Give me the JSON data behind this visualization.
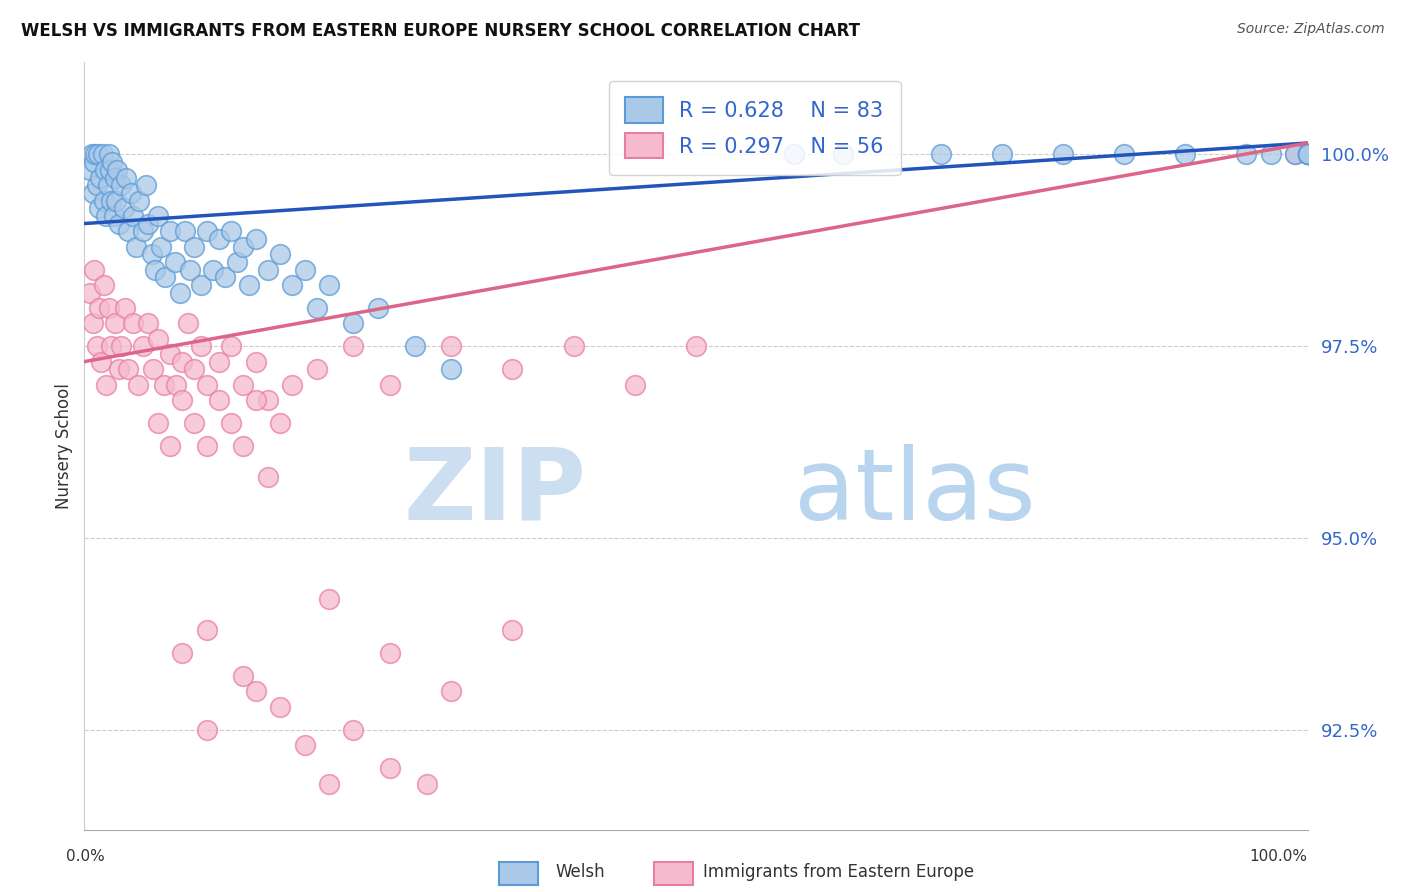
{
  "title": "WELSH VS IMMIGRANTS FROM EASTERN EUROPE NURSERY SCHOOL CORRELATION CHART",
  "source": "Source: ZipAtlas.com",
  "ylabel": "Nursery School",
  "yticks": [
    92.5,
    95.0,
    97.5,
    100.0
  ],
  "ytick_labels": [
    "92.5%",
    "95.0%",
    "97.5%",
    "100.0%"
  ],
  "xlim": [
    0,
    100
  ],
  "ylim": [
    91.2,
    101.2
  ],
  "welsh_color": "#aac9e8",
  "welsh_edge_color": "#5b9bd5",
  "pink_color": "#f5bace",
  "pink_edge_color": "#e87fa0",
  "blue_line_color": "#2255bb",
  "pink_line_color": "#dd6688",
  "legend_R_welsh": "R = 0.628",
  "legend_N_welsh": "N = 83",
  "legend_R_pink": "R = 0.297",
  "legend_N_pink": "N = 56",
  "watermark_zip_color": "#ccdff0",
  "watermark_atlas_color": "#b8d4ee",
  "grid_color": "#cccccc",
  "background_color": "#ffffff",
  "blue_line_x0": 0,
  "blue_line_y0": 99.1,
  "blue_line_x1": 100,
  "blue_line_y1": 100.15,
  "pink_line_x0": 0,
  "pink_line_y0": 97.3,
  "pink_line_x1": 100,
  "pink_line_y1": 100.15,
  "welsh_x_data": [
    0.5,
    0.6,
    0.7,
    0.8,
    0.9,
    1.0,
    1.1,
    1.2,
    1.3,
    1.5,
    1.6,
    1.7,
    1.8,
    1.9,
    2.0,
    2.1,
    2.2,
    2.3,
    2.4,
    2.5,
    2.6,
    2.7,
    2.8,
    3.0,
    3.2,
    3.4,
    3.6,
    3.8,
    4.0,
    4.2,
    4.5,
    4.8,
    5.0,
    5.2,
    5.5,
    5.8,
    6.0,
    6.3,
    6.6,
    7.0,
    7.4,
    7.8,
    8.2,
    8.6,
    9.0,
    9.5,
    10.0,
    10.5,
    11.0,
    11.5,
    12.0,
    12.5,
    13.0,
    13.5,
    14.0,
    15.0,
    16.0,
    17.0,
    18.0,
    19.0,
    20.0,
    22.0,
    24.0,
    27.0,
    30.0,
    58.0,
    62.0,
    70.0,
    75.0,
    80.0,
    85.0,
    90.0,
    95.0,
    97.0,
    99.0,
    100.0,
    100.0,
    100.0,
    100.0,
    100.0,
    100.0,
    100.0,
    100.0
  ],
  "welsh_y_data": [
    99.8,
    100.0,
    99.5,
    99.9,
    100.0,
    99.6,
    100.0,
    99.3,
    99.7,
    100.0,
    99.4,
    99.8,
    99.2,
    99.6,
    100.0,
    99.8,
    99.4,
    99.9,
    99.2,
    99.7,
    99.4,
    99.8,
    99.1,
    99.6,
    99.3,
    99.7,
    99.0,
    99.5,
    99.2,
    98.8,
    99.4,
    99.0,
    99.6,
    99.1,
    98.7,
    98.5,
    99.2,
    98.8,
    98.4,
    99.0,
    98.6,
    98.2,
    99.0,
    98.5,
    98.8,
    98.3,
    99.0,
    98.5,
    98.9,
    98.4,
    99.0,
    98.6,
    98.8,
    98.3,
    98.9,
    98.5,
    98.7,
    98.3,
    98.5,
    98.0,
    98.3,
    97.8,
    98.0,
    97.5,
    97.2,
    100.0,
    100.0,
    100.0,
    100.0,
    100.0,
    100.0,
    100.0,
    100.0,
    100.0,
    100.0,
    100.0,
    100.0,
    100.0,
    100.0,
    100.0,
    100.0,
    100.0,
    100.0
  ],
  "pink_x_data": [
    0.5,
    0.7,
    0.8,
    1.0,
    1.2,
    1.4,
    1.6,
    1.8,
    2.0,
    2.2,
    2.5,
    2.8,
    3.0,
    3.3,
    3.6,
    4.0,
    4.4,
    4.8,
    5.2,
    5.6,
    6.0,
    6.5,
    7.0,
    7.5,
    8.0,
    8.5,
    9.0,
    9.5,
    10.0,
    11.0,
    12.0,
    13.0,
    14.0,
    15.0,
    17.0,
    19.0,
    22.0,
    25.0,
    30.0,
    35.0,
    40.0,
    45.0,
    50.0,
    6.0,
    7.0,
    8.0,
    9.0,
    10.0,
    11.0,
    12.0,
    13.0,
    14.0,
    15.0,
    16.0,
    99.0,
    100.0
  ],
  "pink_y_data": [
    98.2,
    97.8,
    98.5,
    97.5,
    98.0,
    97.3,
    98.3,
    97.0,
    98.0,
    97.5,
    97.8,
    97.2,
    97.5,
    98.0,
    97.2,
    97.8,
    97.0,
    97.5,
    97.8,
    97.2,
    97.6,
    97.0,
    97.4,
    97.0,
    97.3,
    97.8,
    97.2,
    97.5,
    97.0,
    97.3,
    97.5,
    97.0,
    97.3,
    96.8,
    97.0,
    97.2,
    97.5,
    97.0,
    97.5,
    97.2,
    97.5,
    97.0,
    97.5,
    96.5,
    96.2,
    96.8,
    96.5,
    96.2,
    96.8,
    96.5,
    96.2,
    96.8,
    95.8,
    96.5,
    100.0,
    100.0
  ],
  "pink_outlier_x": [
    10.0,
    13.0,
    20.0,
    25.0,
    35.0,
    8.0,
    10.0,
    14.0,
    16.0,
    18.0,
    20.0,
    22.0,
    25.0,
    28.0,
    30.0
  ],
  "pink_outlier_y": [
    93.8,
    93.2,
    94.2,
    93.5,
    93.8,
    93.5,
    92.5,
    93.0,
    92.8,
    92.3,
    91.8,
    92.5,
    92.0,
    91.8,
    93.0
  ]
}
